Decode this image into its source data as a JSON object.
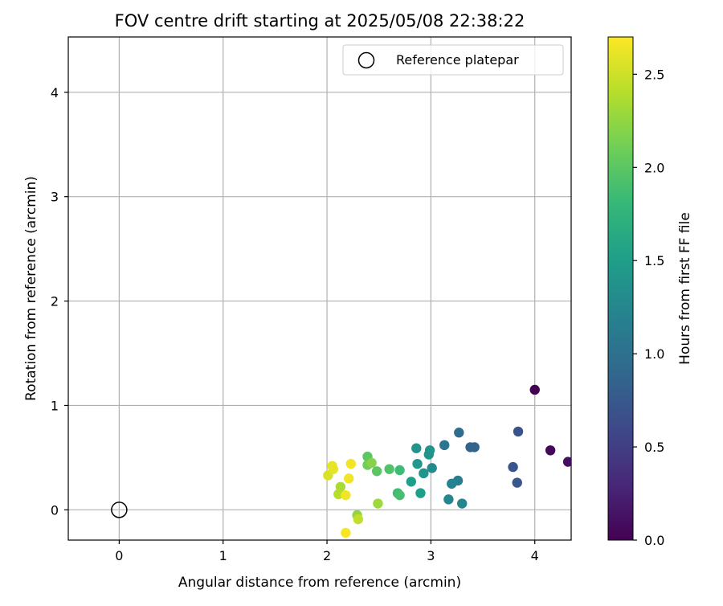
{
  "chart_data": {
    "type": "scatter",
    "title": "FOV centre drift starting at 2025/05/08 22:38:22",
    "xlabel": "Angular distance from reference (arcmin)",
    "ylabel": "Rotation from reference (arcmin)",
    "xlim": [
      -0.49,
      4.35
    ],
    "ylim": [
      -0.29,
      4.53
    ],
    "x_ticks": [
      0,
      1,
      2,
      3,
      4
    ],
    "y_ticks": [
      0,
      1,
      2,
      3,
      4
    ],
    "grid": true,
    "legend": {
      "placement": "top-right",
      "entries": [
        {
          "label": "Reference platepar",
          "marker": "open-circle"
        }
      ]
    },
    "reference_point": {
      "x": 0,
      "y": 0
    },
    "colorbar": {
      "label": "Hours from first FF file",
      "colormap": "viridis",
      "range": [
        0,
        2.7
      ],
      "ticks": [
        0.0,
        0.5,
        1.0,
        1.5,
        2.0,
        2.5
      ]
    },
    "points": [
      {
        "x": 4.0,
        "y": 1.15,
        "c": 0.0
      },
      {
        "x": 4.15,
        "y": 0.57,
        "c": 0.05
      },
      {
        "x": 4.32,
        "y": 0.46,
        "c": 0.1
      },
      {
        "x": 3.84,
        "y": 0.75,
        "c": 0.7
      },
      {
        "x": 3.79,
        "y": 0.41,
        "c": 0.72
      },
      {
        "x": 3.83,
        "y": 0.26,
        "c": 0.74
      },
      {
        "x": 3.38,
        "y": 0.6,
        "c": 0.85
      },
      {
        "x": 3.42,
        "y": 0.6,
        "c": 0.87
      },
      {
        "x": 3.27,
        "y": 0.74,
        "c": 0.95
      },
      {
        "x": 3.13,
        "y": 0.62,
        "c": 1.05
      },
      {
        "x": 3.26,
        "y": 0.28,
        "c": 1.15
      },
      {
        "x": 3.2,
        "y": 0.25,
        "c": 1.2
      },
      {
        "x": 3.3,
        "y": 0.06,
        "c": 1.25
      },
      {
        "x": 3.17,
        "y": 0.1,
        "c": 1.25
      },
      {
        "x": 3.01,
        "y": 0.4,
        "c": 1.3
      },
      {
        "x": 2.99,
        "y": 0.57,
        "c": 1.4
      },
      {
        "x": 2.98,
        "y": 0.53,
        "c": 1.4
      },
      {
        "x": 2.93,
        "y": 0.35,
        "c": 1.4
      },
      {
        "x": 2.86,
        "y": 0.59,
        "c": 1.4
      },
      {
        "x": 2.87,
        "y": 0.44,
        "c": 1.45
      },
      {
        "x": 2.81,
        "y": 0.27,
        "c": 1.5
      },
      {
        "x": 2.9,
        "y": 0.16,
        "c": 1.5
      },
      {
        "x": 2.7,
        "y": 0.38,
        "c": 1.85
      },
      {
        "x": 2.68,
        "y": 0.16,
        "c": 1.85
      },
      {
        "x": 2.7,
        "y": 0.14,
        "c": 1.9
      },
      {
        "x": 2.6,
        "y": 0.39,
        "c": 1.95
      },
      {
        "x": 2.48,
        "y": 0.37,
        "c": 2.0
      },
      {
        "x": 2.39,
        "y": 0.51,
        "c": 2.0
      },
      {
        "x": 2.39,
        "y": 0.43,
        "c": 2.1
      },
      {
        "x": 2.43,
        "y": 0.45,
        "c": 2.2
      },
      {
        "x": 2.29,
        "y": -0.05,
        "c": 2.25
      },
      {
        "x": 2.49,
        "y": 0.06,
        "c": 2.3
      },
      {
        "x": 2.13,
        "y": 0.22,
        "c": 2.35
      },
      {
        "x": 2.11,
        "y": 0.15,
        "c": 2.4
      },
      {
        "x": 2.3,
        "y": -0.09,
        "c": 2.45
      },
      {
        "x": 2.01,
        "y": 0.33,
        "c": 2.55
      },
      {
        "x": 2.05,
        "y": 0.42,
        "c": 2.6
      },
      {
        "x": 2.06,
        "y": 0.39,
        "c": 2.6
      },
      {
        "x": 2.23,
        "y": 0.44,
        "c": 2.65
      },
      {
        "x": 2.21,
        "y": 0.3,
        "c": 2.65
      },
      {
        "x": 2.18,
        "y": 0.14,
        "c": 2.65
      },
      {
        "x": 2.18,
        "y": -0.22,
        "c": 2.68
      }
    ]
  }
}
